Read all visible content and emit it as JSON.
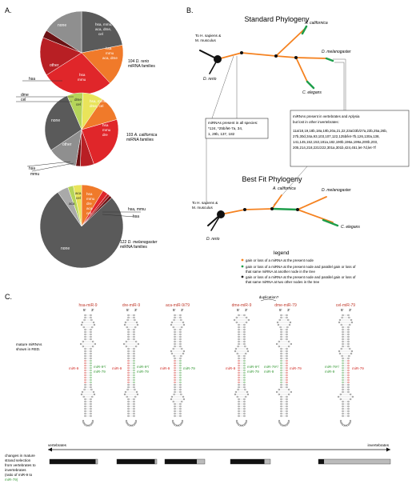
{
  "panelA": {
    "label": "A.",
    "pies": [
      {
        "caption_count": "104",
        "caption_species": "D. rerio",
        "caption_rest": "miRNA families",
        "outside_labels": [
          "hsa"
        ],
        "slices": [
          {
            "label": "none",
            "value": 22,
            "color": "#5a5a5a"
          },
          {
            "label": "hsa, mmu, aca, dme, cel",
            "value": 16,
            "color": "#f07a2a"
          },
          {
            "label": "hsa mmu aca, dme",
            "value": 28,
            "color": "#e0262a"
          },
          {
            "label": "hsa mmu",
            "value": 15,
            "color": "#b81f24"
          },
          {
            "label": "hsa",
            "value": 3,
            "color": "#6b1214"
          },
          {
            "label": "other",
            "value": 16,
            "color": "#8f8f8f"
          }
        ]
      },
      {
        "caption_count": "103",
        "caption_species": "A. californica",
        "caption_rest": "miRNA families",
        "outside_labels": [
          "dme",
          "cel",
          "hsa",
          "mmu"
        ],
        "slices": [
          {
            "label": "dme cel",
            "value": 9,
            "color": "#e9e45a"
          },
          {
            "label": "hsa, mmu, dme, cel",
            "value": 11,
            "color": "#f07a2a"
          },
          {
            "label": "hsa mmu dre",
            "value": 24,
            "color": "#e0262a"
          },
          {
            "label": "",
            "value": 6,
            "color": "#b81f24"
          },
          {
            "label": "",
            "value": 2,
            "color": "#6b1214"
          },
          {
            "label": "other",
            "value": 13,
            "color": "#8f8f8f"
          },
          {
            "label": "none",
            "value": 28,
            "color": "#5a5a5a"
          },
          {
            "label": "",
            "value": 7,
            "color": "#b5d45a"
          }
        ]
      },
      {
        "caption_count": "122",
        "caption_species": "D. melanogaster",
        "caption_rest": "miRNA families",
        "outside_labels": [
          "hsa, mmu",
          "hsa"
        ],
        "slices": [
          {
            "label": "hsa mmu dre aca cel",
            "value": 8,
            "color": "#f07a2a"
          },
          {
            "label": "",
            "value": 2,
            "color": "#e0262a"
          },
          {
            "label": "",
            "value": 1,
            "color": "#b81f24"
          },
          {
            "label": "",
            "value": 1,
            "color": "#6b1214"
          },
          {
            "label": "none",
            "value": 72,
            "color": "#5a5a5a"
          },
          {
            "label": "",
            "value": 4,
            "color": "#a9a9a9"
          },
          {
            "label": "aca",
            "value": 2,
            "color": "#b5d45a"
          },
          {
            "label": "aca cel",
            "value": 3,
            "color": "#e9e45a"
          }
        ]
      }
    ]
  },
  "panelB": {
    "label": "B.",
    "standard_title": "Standard Phylogeny",
    "bestfit_title": "Best Fit Phylogeny",
    "to_human": "To H. sapiens & M. musculus",
    "to_human_line1": "To H. sapiens &",
    "to_human_line2": "M. musculus",
    "species": {
      "aca": "A. californica",
      "dme": "D. melanogaster",
      "cel": "C. elegans",
      "dre": "D. rerio"
    },
    "box_all_species": "miRNAs present in all species: *124, *25b/let-7a, 34, 1, 29b, 137, 182",
    "box_all_lines": [
      "miRNAs present in all species:",
      "*124, *25b/let-7a, 34,",
      "1, 29b, 137, 182"
    ],
    "box_vertebrates_lines": [
      "miRNAs present in vertebrates and Aplysia",
      "but lost in other invertebrates:",
      "11a/18,19,18b,18a,19b,20a,21,22,23a/23b/27a,23b,25a,26b,",
      "27b,30d,34a,93,103,107,122,125b/let-7b,126,130a,138,",
      "141,145,152,153,181a,182,190b,196a,199a,200b,203,",
      "205,214,218,221/222,301a,301b,424,451,let-7d,let-7f"
    ],
    "legend_title": "legend",
    "legend_items": [
      "gain or loss of a miRNA at the present node",
      "gain or loss of a miRNA at the present node and parallel gain or loss of that same miRNA at another node in the tree",
      "gain or loss of a miRNA at the present node and parallel gain or loss of that same miRNA at two other nodes in the tree"
    ],
    "legend_colors": [
      "#f58220",
      "#1e9e4b",
      "#222222"
    ]
  },
  "panelC": {
    "label": "C.",
    "hairpins": [
      {
        "title": "hsa-miR-9",
        "mature_red": "miR-9",
        "mature_green": "miR-9*/ miR-79"
      },
      {
        "title": "dre-miR-9",
        "mature_red": "miR-9",
        "mature_green": "miR-9*/ miR-79"
      },
      {
        "title": "aca-miR-9/79",
        "mature_red": "miR-9",
        "mature_green": "miR-79"
      },
      {
        "title": "dme-miR-9",
        "mature_red": "miR-9",
        "mature_green": "miR-9*/ miR-79"
      },
      {
        "title": "dme-miR-79",
        "mature_red": "miR-79",
        "mature_green": "miR-79*/ miR-9"
      },
      {
        "title": "cel-miR-79",
        "mature_red": "miR-79",
        "mature_green": "miR-79*/ miR-9"
      }
    ],
    "duplication": "duplication?",
    "end5": "5'",
    "end3": "3'",
    "mature_note_lines": [
      "mature miRNAs",
      "shown in RED."
    ],
    "axis_left": "vertebrates",
    "axis_right": "invertebrates",
    "changes_lines": [
      "changes in mature",
      "strand selection",
      "from vertebrates to",
      "invertebrates",
      "(ratio of miR-9 to",
      "miR-79)"
    ],
    "strand_bars": [
      0.96,
      0.95,
      0.8,
      0.85,
      0.8,
      0.08
    ],
    "colors": {
      "red": "#d3312b",
      "green": "#3a9b3a",
      "title_red": "#c0392b"
    }
  }
}
